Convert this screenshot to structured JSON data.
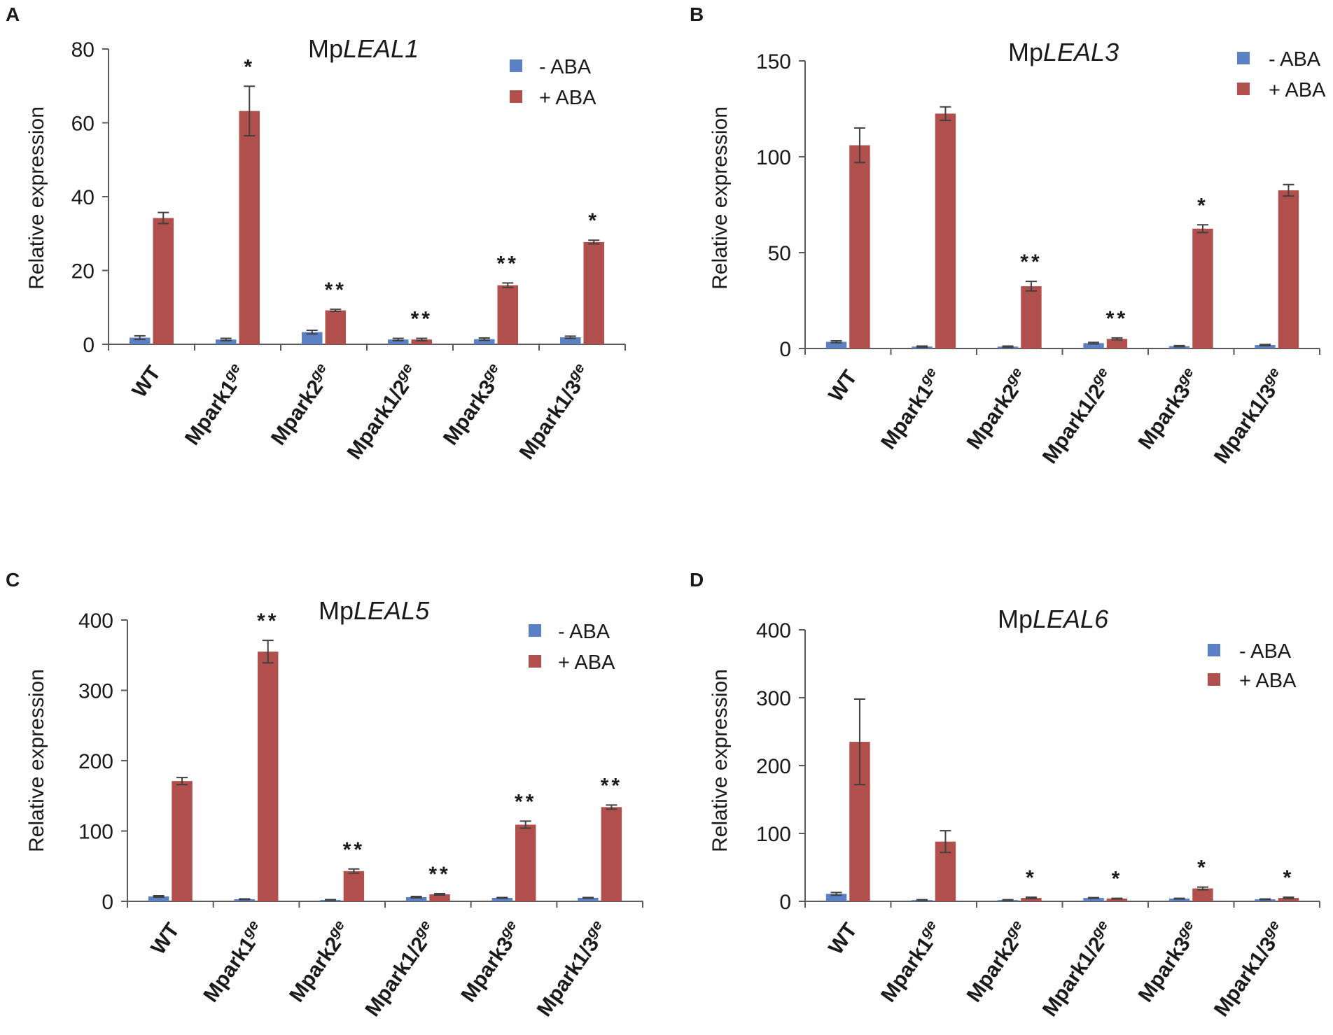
{
  "figure": {
    "colors": {
      "minus": "#5b80c4",
      "plus": "#b14f4d",
      "axis": "#5a5a5a",
      "err": "#404040"
    },
    "ylabel": "Relative expression",
    "legend": [
      "- ABA",
      "+ ABA"
    ],
    "categories": [
      {
        "base": "Mpark1/2",
        "sup": "ge"
      }
    ]
  },
  "chart_data": [
    {
      "type": "bar",
      "panel": "A",
      "title": {
        "prefix": "Mp",
        "gene": "LEAL1"
      },
      "categories": [
        "WT",
        "Mpark1ge",
        "Mpark2ge",
        "Mpark1/2ge",
        "Mpark3ge",
        "Mpark1/3ge"
      ],
      "category_labels": [
        {
          "base": "WT",
          "sup": ""
        },
        {
          "base": "Mpark1",
          "sup": "ge"
        },
        {
          "base": "Mpark2",
          "sup": "ge"
        },
        {
          "base": "Mpark1/2",
          "sup": "ge"
        },
        {
          "base": "Mpark3",
          "sup": "ge"
        },
        {
          "base": "Mpark1/3",
          "sup": "ge"
        }
      ],
      "series": [
        {
          "name": "- ABA",
          "values": [
            1.8,
            1.3,
            3.3,
            1.3,
            1.4,
            1.9
          ],
          "errors": [
            0.5,
            0.3,
            0.5,
            0.3,
            0.3,
            0.3
          ]
        },
        {
          "name": "+ ABA",
          "values": [
            34.2,
            63.2,
            9.2,
            1.3,
            16.0,
            27.7
          ],
          "errors": [
            1.5,
            6.7,
            0.3,
            0.3,
            0.6,
            0.5
          ]
        }
      ],
      "significance": [
        "",
        "*",
        "**",
        "**",
        "**",
        "*"
      ],
      "ylim": [
        0,
        80
      ],
      "yticks": [
        0,
        20,
        40,
        60,
        80
      ],
      "ylabel": "Relative expression",
      "legend": "top-right"
    },
    {
      "type": "bar",
      "panel": "B",
      "title": {
        "prefix": "Mp",
        "gene": "LEAL3"
      },
      "categories": [
        "WT",
        "Mpark1ge",
        "Mpark2ge",
        "Mpark1/2ge",
        "Mpark3ge",
        "Mpark1/3ge"
      ],
      "category_labels": [
        {
          "base": "WT",
          "sup": ""
        },
        {
          "base": "Mpark1",
          "sup": "ge"
        },
        {
          "base": "Mpark2",
          "sup": "ge"
        },
        {
          "base": "Mpark1/2",
          "sup": "ge"
        },
        {
          "base": "Mpark3",
          "sup": "ge"
        },
        {
          "base": "Mpark1/3",
          "sup": "ge"
        }
      ],
      "series": [
        {
          "name": "- ABA",
          "values": [
            3.5,
            1.0,
            1.0,
            2.8,
            1.2,
            1.8
          ],
          "errors": [
            0.5,
            0.3,
            0.3,
            0.4,
            0.3,
            0.3
          ]
        },
        {
          "name": "+ ABA",
          "values": [
            106,
            122.5,
            32.5,
            5.0,
            62.5,
            82.5
          ],
          "errors": [
            9,
            3.5,
            2.5,
            0.5,
            2.0,
            3.0
          ]
        }
      ],
      "significance": [
        "",
        "",
        "**",
        "**",
        "*",
        ""
      ],
      "ylim": [
        0,
        150
      ],
      "yticks": [
        0,
        50,
        100,
        150
      ],
      "ylabel": "Relative expression",
      "legend": "top-right"
    },
    {
      "type": "bar",
      "panel": "C",
      "title": {
        "prefix": "Mp",
        "gene": "LEAL5"
      },
      "categories": [
        "WT",
        "Mpark1ge",
        "Mpark2ge",
        "Mpark1/2ge",
        "Mpark3ge",
        "Mpark1/3ge"
      ],
      "category_labels": [
        {
          "base": "WT",
          "sup": ""
        },
        {
          "base": "Mpark1",
          "sup": "ge"
        },
        {
          "base": "Mpark2",
          "sup": "ge"
        },
        {
          "base": "Mpark1/2",
          "sup": "ge"
        },
        {
          "base": "Mpark3",
          "sup": "ge"
        },
        {
          "base": "Mpark1/3",
          "sup": "ge"
        }
      ],
      "series": [
        {
          "name": "- ABA",
          "values": [
            7,
            3,
            2,
            6,
            5,
            5
          ],
          "errors": [
            1,
            0.5,
            0.5,
            1,
            0.5,
            0.5
          ]
        },
        {
          "name": "+ ABA",
          "values": [
            171,
            355,
            43,
            10,
            109,
            134
          ],
          "errors": [
            5,
            16,
            3,
            1,
            5,
            3
          ]
        }
      ],
      "significance": [
        "",
        "**",
        "**",
        "**",
        "**",
        "**"
      ],
      "ylim": [
        0,
        400
      ],
      "yticks": [
        0,
        100,
        200,
        300,
        400
      ],
      "ylabel": "Relative expression",
      "legend": "top-right"
    },
    {
      "type": "bar",
      "panel": "D",
      "title": {
        "prefix": "Mp",
        "gene": "LEAL6"
      },
      "categories": [
        "WT",
        "Mpark1ge",
        "Mpark2ge",
        "Mpark1/2ge",
        "Mpark3ge",
        "Mpark1/3ge"
      ],
      "category_labels": [
        {
          "base": "WT",
          "sup": ""
        },
        {
          "base": "Mpark1",
          "sup": "ge"
        },
        {
          "base": "Mpark2",
          "sup": "ge"
        },
        {
          "base": "Mpark1/2",
          "sup": "ge"
        },
        {
          "base": "Mpark3",
          "sup": "ge"
        },
        {
          "base": "Mpark1/3",
          "sup": "ge"
        }
      ],
      "series": [
        {
          "name": "- ABA",
          "values": [
            11,
            2,
            2,
            5,
            4,
            3
          ],
          "errors": [
            2,
            0.5,
            0.5,
            0.5,
            0.5,
            0.5
          ]
        },
        {
          "name": "+ ABA",
          "values": [
            235,
            88,
            5,
            4,
            19,
            5
          ],
          "errors": [
            63,
            16,
            1,
            0.5,
            2,
            1
          ]
        }
      ],
      "significance": [
        "",
        "",
        "*",
        "*",
        "*",
        "*"
      ],
      "ylim": [
        0,
        400
      ],
      "yticks": [
        0,
        100,
        200,
        300,
        400
      ],
      "ylabel": "Relative expression",
      "legend": "top-right"
    }
  ]
}
